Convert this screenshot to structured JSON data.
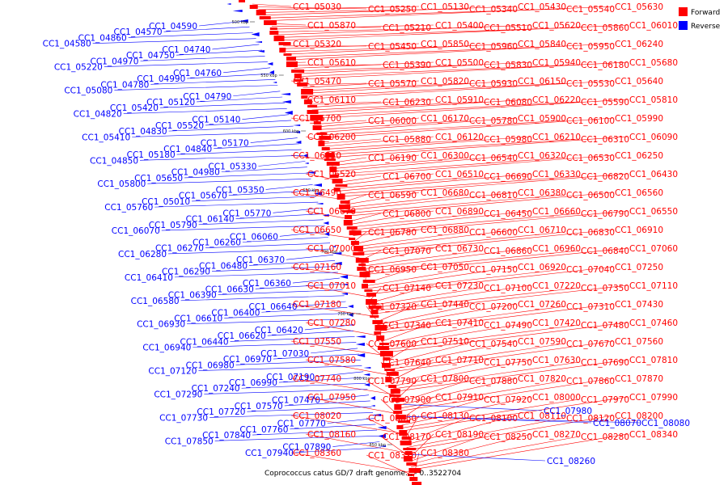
{
  "title": "Coprococcus catus GD/7 draft genome... - 0..3522704",
  "legend": {
    "forward": {
      "label": "Forward",
      "color": "#ff0000"
    },
    "reverse": {
      "label": "Reverse",
      "color": "#0000ff"
    }
  },
  "ticks": [
    "500 kbp",
    "550 kbp",
    "600 kbp",
    "650 kbp",
    "700 kbp",
    "750 kbp",
    "800 kbp",
    "850 kbp"
  ],
  "forward_labels": [
    "CC1_05030",
    "CC1_05250",
    "CC1_05130",
    "CC1_05340",
    "CC1_05430",
    "CC1_05540",
    "CC1_05630",
    "CC1_05870",
    "CC1_05210",
    "CC1_05400",
    "CC1_05510",
    "CC1_05620",
    "CC1_05860",
    "CC1_06010",
    "CC1_05320",
    "CC1_05450",
    "CC1_05850",
    "CC1_05960",
    "CC1_05840",
    "CC1_05950",
    "CC1_06240",
    "CC1_05610",
    "CC1_05390",
    "CC1_05500",
    "CC1_05830",
    "CC1_05940",
    "CC1_06180",
    "CC1_05680",
    "CC1_05470",
    "CC1_05570",
    "CC1_05820",
    "CC1_05930",
    "CC1_06150",
    "CC1_05530",
    "CC1_05640",
    "CC1_06110",
    "CC1_06230",
    "CC1_05910",
    "CC1_06080",
    "CC1_06220",
    "CC1_05590",
    "CC1_05810",
    "CC1_05700",
    "CC1_06000",
    "CC1_06170",
    "CC1_05780",
    "CC1_05900",
    "CC1_06100",
    "CC1_05990",
    "CC1_06200",
    "CC1_05880",
    "CC1_06120",
    "CC1_05980",
    "CC1_06210",
    "CC1_06310",
    "CC1_06090",
    "CC1_06350",
    "CC1_06190",
    "CC1_06300",
    "CC1_06540",
    "CC1_06320",
    "CC1_06530",
    "CC1_06250",
    "CC1_06520",
    "CC1_06700",
    "CC1_06510",
    "CC1_06690",
    "CC1_06330",
    "CC1_06820",
    "CC1_06430",
    "CC1_06490",
    "CC1_06590",
    "CC1_06680",
    "CC1_06810",
    "CC1_06380",
    "CC1_06500",
    "CC1_06560",
    "CC1_06670",
    "CC1_06800",
    "CC1_06890",
    "CC1_06450",
    "CC1_06660",
    "CC1_06790",
    "CC1_06550",
    "CC1_06650",
    "CC1_06780",
    "CC1_06880",
    "CC1_06600",
    "CC1_06710",
    "CC1_06830",
    "CC1_06910",
    "CC1_07000",
    "CC1_07070",
    "CC1_06730",
    "CC1_06860",
    "CC1_06960",
    "CC1_06840",
    "CC1_07060",
    "CC1_07160",
    "CC1_06950",
    "CC1_07050",
    "CC1_07150",
    "CC1_06920",
    "CC1_07040",
    "CC1_07250",
    "CC1_07010",
    "CC1_07140",
    "CC1_07230",
    "CC1_07100",
    "CC1_07220",
    "CC1_07350",
    "CC1_07110",
    "CC1_07180",
    "CC1_07320",
    "CC1_07440",
    "CC1_07200",
    "CC1_07260",
    "CC1_07310",
    "CC1_07430",
    "CC1_07280",
    "CC1_07340",
    "CC1_07410",
    "CC1_07490",
    "CC1_07420",
    "CC1_07480",
    "CC1_07460",
    "CC1_07550",
    "CC1_07600",
    "CC1_07510",
    "CC1_07540",
    "CC1_07590",
    "CC1_07670",
    "CC1_07560",
    "CC1_07580",
    "CC1_07640",
    "CC1_07710",
    "CC1_07750",
    "CC1_07630",
    "CC1_07690",
    "CC1_07810",
    "CC1_07740",
    "CC1_07790",
    "CC1_07800",
    "CC1_07880",
    "CC1_07820",
    "CC1_07860",
    "CC1_07870",
    "CC1_07950",
    "CC1_07900",
    "CC1_07910",
    "CC1_07920",
    "CC1_08000",
    "CC1_07970",
    "CC1_07990",
    "CC1_08020",
    "CC1_08060",
    "CC1_08130",
    "CC1_08100",
    "CC1_08110",
    "CC1_08120",
    "CC1_08200",
    "CC1_08160",
    "CC1_08170",
    "CC1_08190",
    "CC1_08250",
    "CC1_08270",
    "CC1_08280",
    "CC1_08340",
    "CC1_08360",
    "CC1_08370",
    "CC1_08380"
  ],
  "reverse_labels_right": [
    "CC1_07980",
    "CC1_08070",
    "CC1_08080",
    "CC1_08260"
  ],
  "reverse_labels_left": [
    "CC1_04590",
    "CC1_04570",
    "CC1_04860",
    "CC1_04580",
    "CC1_04740",
    "CC1_04750",
    "CC1_04970",
    "CC1_05220",
    "CC1_04760",
    "CC1_04990",
    "CC1_04780",
    "CC1_05080",
    "CC1_04790",
    "CC1_05120",
    "CC1_05420",
    "CC1_04820",
    "CC1_05140",
    "CC1_05520",
    "CC1_04830",
    "CC1_05410",
    "CC1_05170",
    "CC1_04840",
    "CC1_05180",
    "CC1_04850",
    "CC1_05330",
    "CC1_04980",
    "CC1_05650",
    "CC1_05800",
    "CC1_05350",
    "CC1_05670",
    "CC1_05010",
    "CC1_05760",
    "CC1_05770",
    "CC1_06140",
    "CC1_05790",
    "CC1_06070",
    "CC1_06060",
    "CC1_06260",
    "CC1_06270",
    "CC1_06280",
    "CC1_06370",
    "CC1_06480",
    "CC1_06290",
    "CC1_06410",
    "CC1_06360",
    "CC1_06630",
    "CC1_06390",
    "CC1_06580",
    "CC1_06640",
    "CC1_06400",
    "CC1_06610",
    "CC1_06930",
    "CC1_06420",
    "CC1_06620",
    "CC1_06440",
    "CC1_06940",
    "CC1_07030",
    "CC1_06970",
    "CC1_06980",
    "CC1_07120",
    "CC1_07190",
    "CC1_06990",
    "CC1_07240",
    "CC1_07290",
    "CC1_07470",
    "CC1_07570",
    "CC1_07720",
    "CC1_07730",
    "CC1_07770",
    "CC1_07760",
    "CC1_07840",
    "CC1_07850",
    "CC1_07890",
    "CC1_07940"
  ]
}
